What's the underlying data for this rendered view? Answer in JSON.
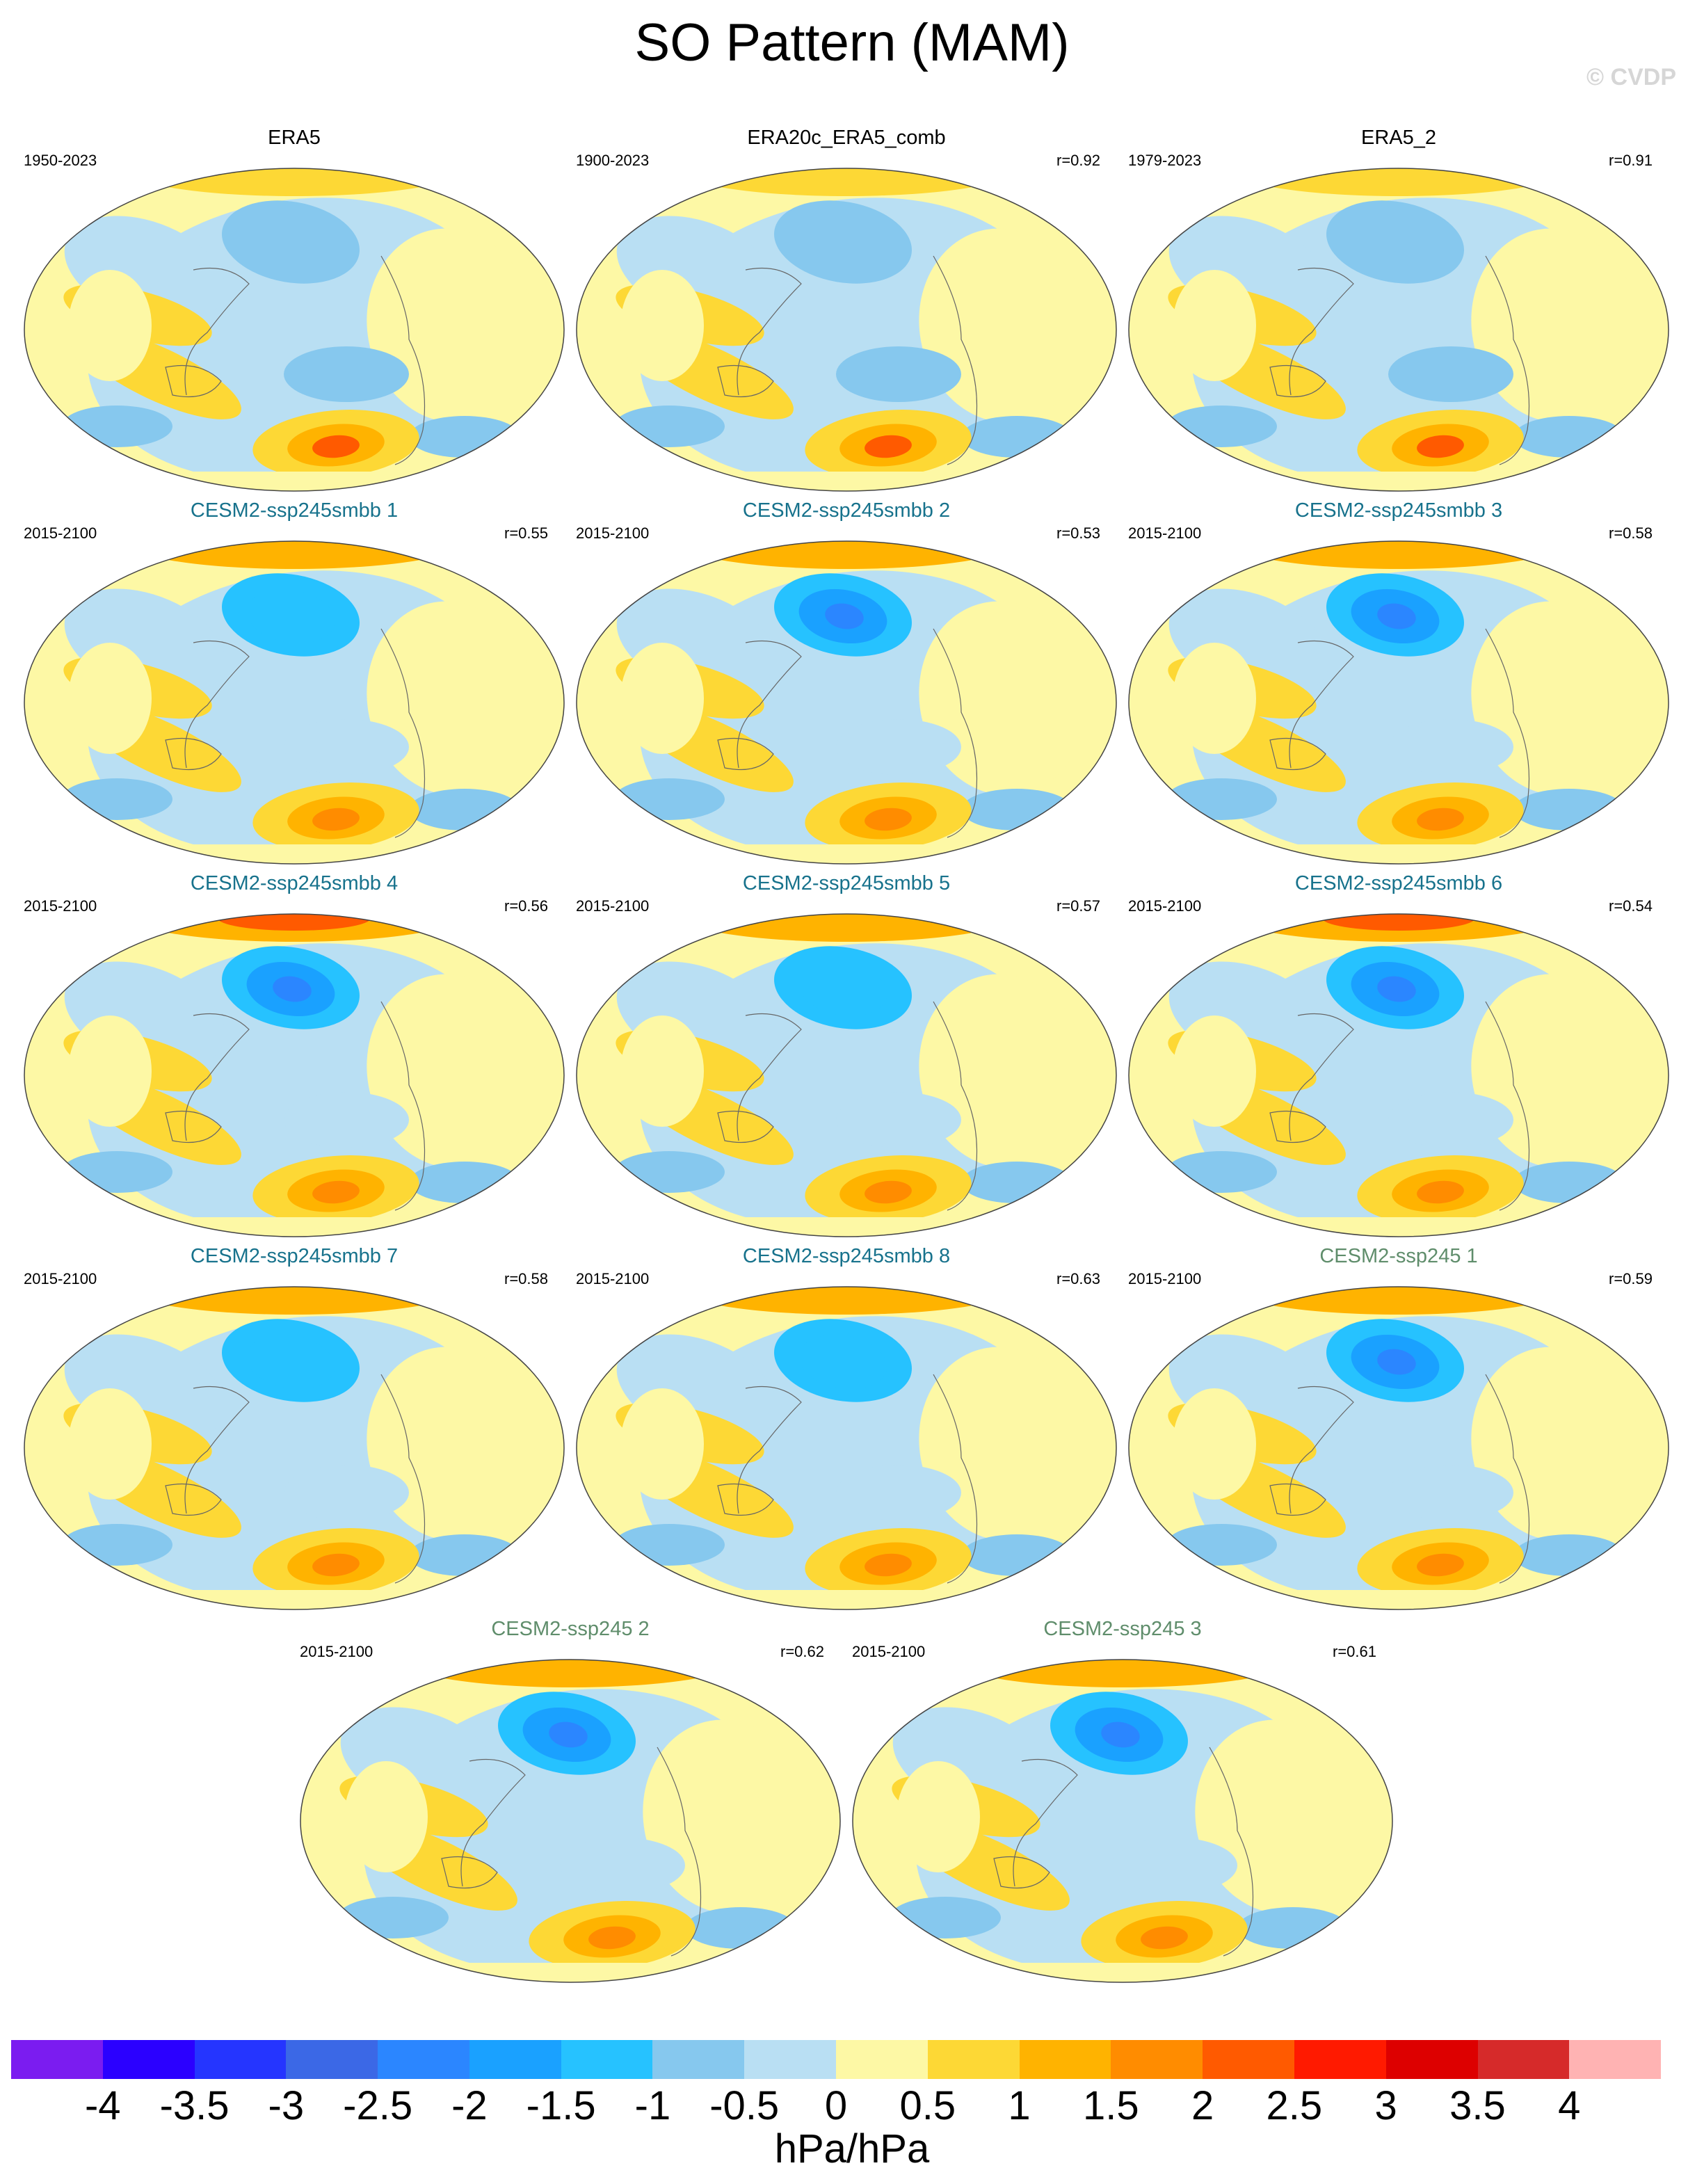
{
  "title": "SO Pattern (MAM)",
  "copyright": "© CVDP",
  "panels": [
    {
      "name": "ERA5",
      "period": "1950-2023",
      "r": "",
      "color": "#000000"
    },
    {
      "name": "ERA20c_ERA5_comb",
      "period": "1900-2023",
      "r": "r=0.92",
      "color": "#000000"
    },
    {
      "name": "ERA5_2",
      "period": "1979-2023",
      "r": "r=0.91",
      "color": "#000000"
    },
    {
      "name": "CESM2-ssp245smbb 1",
      "period": "2015-2100",
      "r": "r=0.55",
      "color": "#17728c"
    },
    {
      "name": "CESM2-ssp245smbb 2",
      "period": "2015-2100",
      "r": "r=0.53",
      "color": "#17728c"
    },
    {
      "name": "CESM2-ssp245smbb 3",
      "period": "2015-2100",
      "r": "r=0.58",
      "color": "#17728c"
    },
    {
      "name": "CESM2-ssp245smbb 4",
      "period": "2015-2100",
      "r": "r=0.56",
      "color": "#17728c"
    },
    {
      "name": "CESM2-ssp245smbb 5",
      "period": "2015-2100",
      "r": "r=0.57",
      "color": "#17728c"
    },
    {
      "name": "CESM2-ssp245smbb 6",
      "period": "2015-2100",
      "r": "r=0.54",
      "color": "#17728c"
    },
    {
      "name": "CESM2-ssp245smbb 7",
      "period": "2015-2100",
      "r": "r=0.58",
      "color": "#17728c"
    },
    {
      "name": "CESM2-ssp245smbb 8",
      "period": "2015-2100",
      "r": "r=0.63",
      "color": "#17728c"
    },
    {
      "name": "CESM2-ssp245 1",
      "period": "2015-2100",
      "r": "r=0.59",
      "color": "#5f8d6b"
    },
    {
      "name": "CESM2-ssp245 2",
      "period": "2015-2100",
      "r": "r=0.62",
      "color": "#5f8d6b"
    },
    {
      "name": "CESM2-ssp245 3",
      "period": "2015-2100",
      "r": "r=0.61",
      "color": "#5f8d6b"
    }
  ],
  "colorbar": {
    "colors": [
      "#7b1cf0",
      "#2b00ff",
      "#2535ff",
      "#3b68e6",
      "#2b86ff",
      "#1aa1ff",
      "#26c2ff",
      "#86c8ee",
      "#b9dff3",
      "#fdf8a5",
      "#fdd835",
      "#ffb300",
      "#ff8c00",
      "#ff5a00",
      "#ff1a00",
      "#dd0000",
      "#d62a2a",
      "#ffb3b3"
    ],
    "ticks": [
      "-4",
      "-3.5",
      "-3",
      "-2.5",
      "-2",
      "-1.5",
      "-1",
      "-0.5",
      "0",
      "0.5",
      "1",
      "1.5",
      "2",
      "2.5",
      "3",
      "3.5",
      "4"
    ],
    "units": "hPa/hPa"
  }
}
